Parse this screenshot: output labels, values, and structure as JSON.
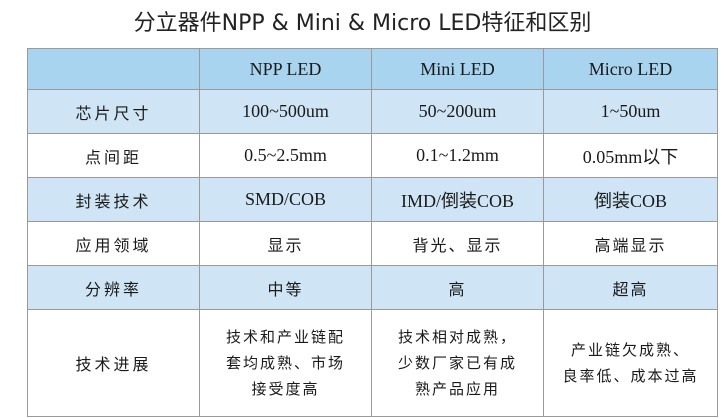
{
  "title": "分立器件NPP & Mini & Micro LED特征和区别",
  "table": {
    "columns": [
      "",
      "NPP LED",
      "Mini LED",
      "Micro LED"
    ],
    "rows": [
      {
        "label": "芯片尺寸",
        "cells": [
          "100~500um",
          "50~200um",
          "1~50um"
        ]
      },
      {
        "label": "点间距",
        "cells": [
          "0.5~2.5mm",
          "0.1~1.2mm",
          "0.05mm以下"
        ]
      },
      {
        "label": "封装技术",
        "cells": [
          "SMD/COB",
          "IMD/倒装COB",
          "倒装COB"
        ]
      },
      {
        "label": "应用领域",
        "cells": [
          "显示",
          "背光、显示",
          "高端显示"
        ]
      },
      {
        "label": "分辨率",
        "cells": [
          "中等",
          "高",
          "超高"
        ]
      },
      {
        "label": "技术进展",
        "cells": [
          [
            "技术和产业链配",
            "套均成熟、市场",
            "接受度高"
          ],
          [
            "技术相对成熟，",
            "少数厂家已有成",
            "熟产品应用"
          ],
          [
            "产业链欠成熟、",
            "良率低、成本过高"
          ]
        ]
      }
    ]
  },
  "colors": {
    "header_bg": "#a9d4ef",
    "shaded_row_bg": "#cfe5f5",
    "border": "#9a9a9a"
  }
}
